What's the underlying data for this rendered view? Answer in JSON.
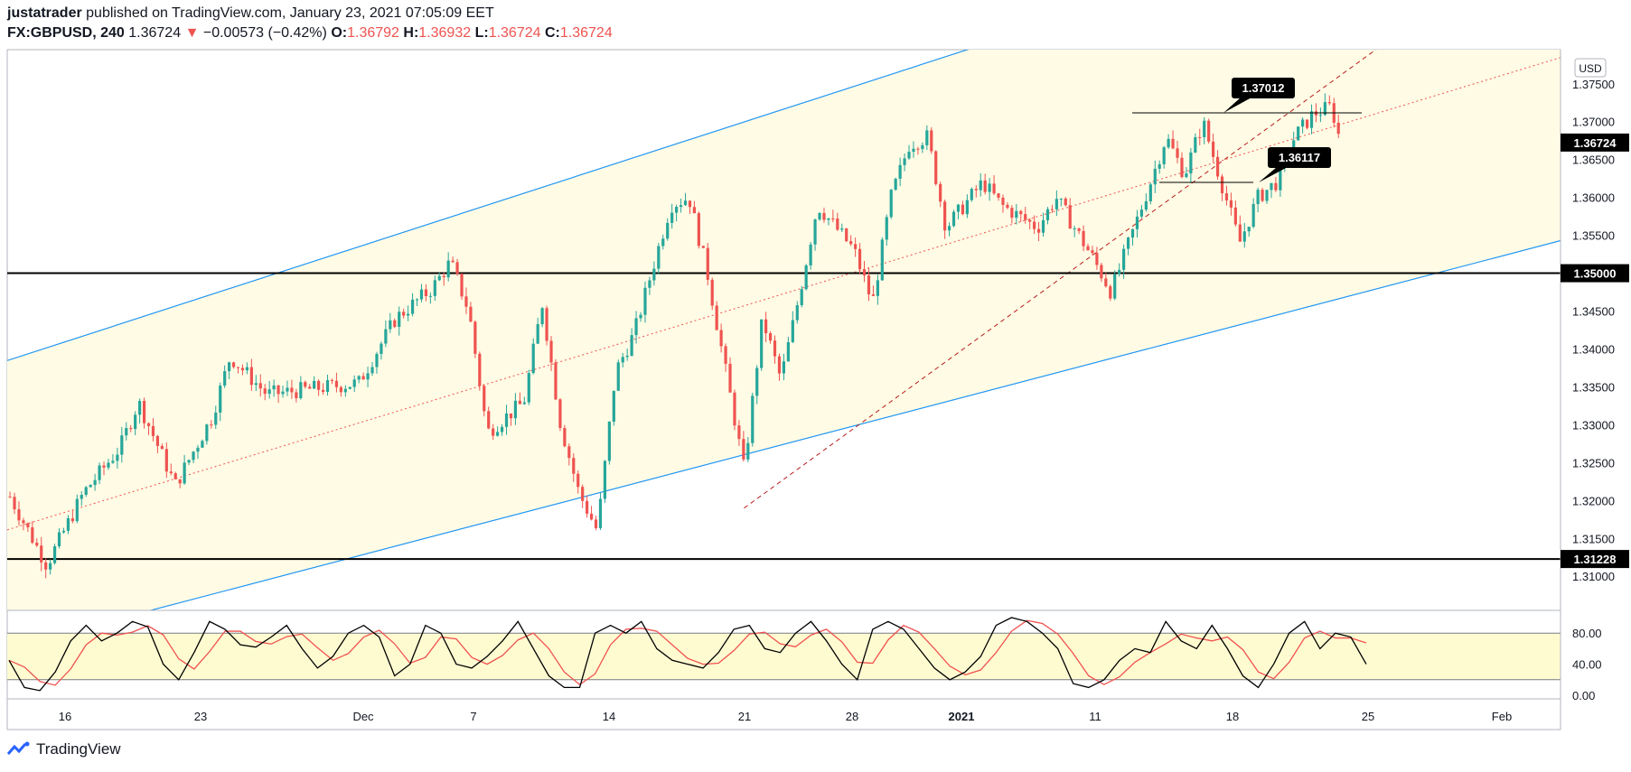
{
  "header": {
    "author": "justatrader",
    "published_text": "published on TradingView.com, January 23, 2021 07:05:09 EET",
    "symbol": "FX:GBPUSD, 240",
    "last": "1.36724",
    "change_arrow": "▼",
    "change": "−0.00573 (−0.42%)",
    "o_label": "O:",
    "o": "1.36792",
    "h_label": "H:",
    "h": "1.36932",
    "l_label": "L:",
    "l": "1.36724",
    "c_label": "C:",
    "c": "1.36724"
  },
  "footer": {
    "brand": "TradingView"
  },
  "colors": {
    "up": "#26a69a",
    "down": "#ef5350",
    "channel": "#2196f3",
    "fill": "#fffbe5",
    "stoch_k": "#000000",
    "stoch_d": "#ef5350"
  },
  "chart_data": {
    "type": "candlestick",
    "currency": "USD",
    "y_range": [
      1.3055,
      1.3795
    ],
    "y_ticks": [
      "1.31000",
      "1.31500",
      "1.32000",
      "1.32500",
      "1.33000",
      "1.33500",
      "1.34000",
      "1.34500",
      "1.35000",
      "1.35500",
      "1.36000",
      "1.36500",
      "1.37000",
      "1.37500"
    ],
    "x_ticks": [
      "16",
      "23",
      "Dec",
      "7",
      "14",
      "21",
      "28",
      "2021",
      "11",
      "18",
      "25",
      "Feb"
    ],
    "price_labels": [
      {
        "text": "1.36724",
        "value": 1.36724
      },
      {
        "text": "1.35000",
        "value": 1.35
      },
      {
        "text": "1.31228",
        "value": 1.31228
      }
    ],
    "horizontal_levels": [
      1.35,
      1.31228
    ],
    "callouts": [
      "1.37012",
      "1.36117"
    ],
    "price_path": [
      [
        "Nov 13",
        1.3205
      ],
      [
        "Nov 15",
        1.3115
      ],
      [
        "Nov 17",
        1.321
      ],
      [
        "Nov 19",
        1.327
      ],
      [
        "Nov 20",
        1.333
      ],
      [
        "Nov 22",
        1.322
      ],
      [
        "Nov 24",
        1.331
      ],
      [
        "Nov 25",
        1.339
      ],
      [
        "Nov 27",
        1.334
      ],
      [
        "Dec 1",
        1.3355
      ],
      [
        "Dec 3",
        1.344
      ],
      [
        "Dec 5",
        1.348
      ],
      [
        "Dec 6",
        1.3515
      ],
      [
        "Dec 7",
        1.345
      ],
      [
        "Dec 8",
        1.329
      ],
      [
        "Dec 10",
        1.333
      ],
      [
        "Dec 11",
        1.346
      ],
      [
        "Dec 12",
        1.33
      ],
      [
        "Dec 13",
        1.321
      ],
      [
        "Dec 14",
        1.316
      ],
      [
        "Dec 15",
        1.337
      ],
      [
        "Dec 16",
        1.342
      ],
      [
        "Dec 18",
        1.359
      ],
      [
        "Dec 19",
        1.36
      ],
      [
        "Dec 20",
        1.35
      ],
      [
        "Dec 22",
        1.324
      ],
      [
        "Dec 23",
        1.344
      ],
      [
        "Dec 24",
        1.336
      ],
      [
        "Dec 25",
        1.347
      ],
      [
        "Dec 26",
        1.359
      ],
      [
        "Dec 27",
        1.356
      ],
      [
        "Dec 28",
        1.353
      ],
      [
        "Dec 29",
        1.346
      ],
      [
        "Dec 30",
        1.36
      ],
      [
        "Dec 31",
        1.367
      ],
      [
        "Jan 1",
        1.368
      ],
      [
        "Jan 2",
        1.356
      ],
      [
        "Jan 4",
        1.362
      ],
      [
        "Jan 5",
        1.359
      ],
      [
        "Jan 7",
        1.356
      ],
      [
        "Jan 8",
        1.36
      ],
      [
        "Jan 10",
        1.352
      ],
      [
        "Jan 11",
        1.3475
      ],
      [
        "Jan 13",
        1.361
      ],
      [
        "Jan 14",
        1.368
      ],
      [
        "Jan 15",
        1.363
      ],
      [
        "Jan 16",
        1.37
      ],
      [
        "Jan 17",
        1.362
      ],
      [
        "Jan 18",
        1.354
      ],
      [
        "Jan 19",
        1.36
      ],
      [
        "Jan 20",
        1.362
      ],
      [
        "Jan 21",
        1.368
      ],
      [
        "Jan 22",
        1.371
      ],
      [
        "Jan 23",
        1.372
      ],
      [
        "Jan 23b",
        1.3672
      ]
    ],
    "channel_upper": [
      [
        "Nov 12",
        1.3378
      ],
      [
        "Jan 14",
        1.388
      ]
    ],
    "channel_lower": [
      [
        "Nov 12",
        1.3
      ],
      [
        "Jan 24",
        1.347
      ]
    ],
    "channel_mid": [
      [
        "Nov 12",
        1.3155
      ],
      [
        "Jan 24",
        1.37
      ]
    ],
    "trendline": [
      [
        "Dec 22",
        1.319
      ],
      [
        "Jan 24",
        1.377
      ]
    ],
    "stochastic": {
      "levels": [
        "80.00",
        "40.00",
        "0.00"
      ],
      "band": [
        20,
        80
      ],
      "k": [
        45,
        10,
        6,
        30,
        70,
        90,
        70,
        80,
        95,
        88,
        40,
        20,
        55,
        95,
        85,
        65,
        62,
        75,
        90,
        60,
        35,
        50,
        80,
        90,
        75,
        25,
        40,
        90,
        80,
        40,
        35,
        50,
        70,
        95,
        60,
        25,
        10,
        10,
        80,
        90,
        80,
        95,
        60,
        45,
        40,
        35,
        55,
        85,
        90,
        60,
        55,
        80,
        95,
        70,
        40,
        20,
        85,
        95,
        85,
        60,
        35,
        20,
        30,
        50,
        90,
        100,
        95,
        80,
        60,
        15,
        10,
        20,
        45,
        60,
        55,
        95,
        70,
        60,
        90,
        60,
        25,
        10,
        40,
        80,
        95,
        60,
        80,
        75,
        40
      ]
    }
  }
}
